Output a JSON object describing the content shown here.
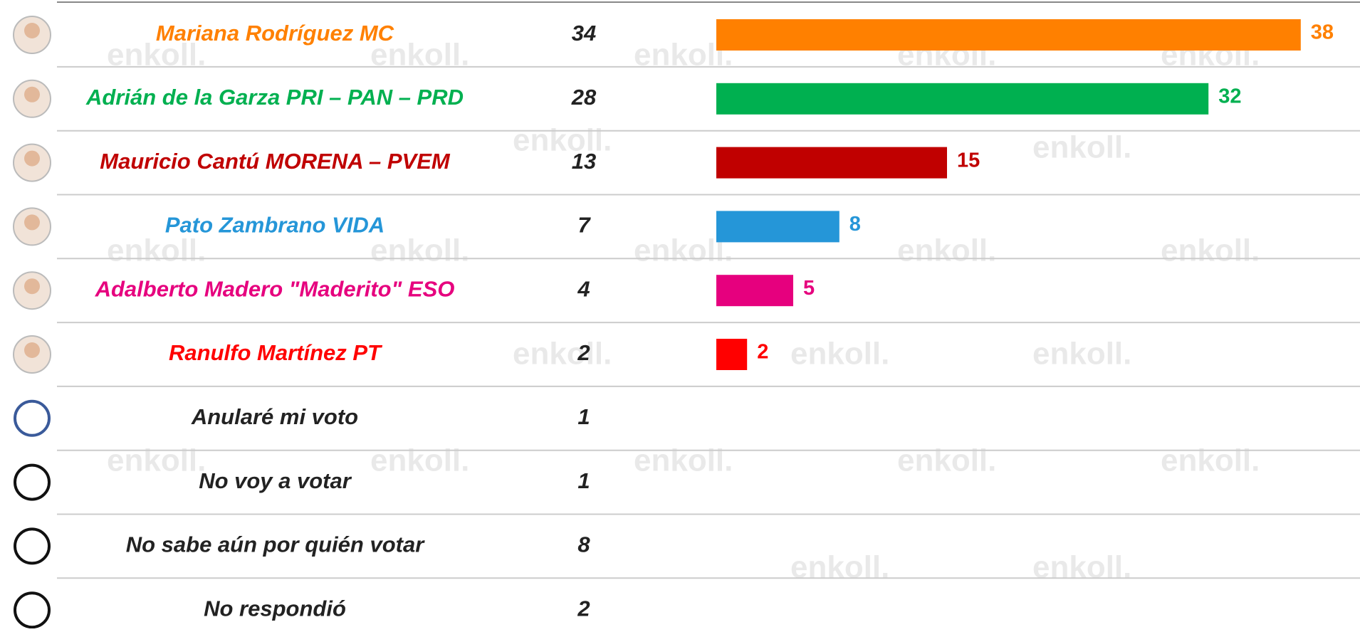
{
  "chart_data": {
    "type": "bar",
    "watermark": "enkoll.",
    "categories": [
      "Mariana Rodríguez MC",
      "Adrián de la Garza PRI – PAN – PRD",
      "Mauricio Cantú MORENA – PVEM",
      "Pato Zambrano VIDA",
      "Adalberto Madero \"Maderito\" ESO",
      "Ranulfo Martínez PT",
      "Anularé mi voto",
      "No voy a votar",
      "No sabe aún por quién votar",
      "No respondió"
    ],
    "colors": [
      "#ff8000",
      "#00b050",
      "#c00000",
      "#2596d8",
      "#e6007e",
      "#ff0000",
      "#222222",
      "#222222",
      "#222222",
      "#222222"
    ],
    "column_values": [
      34,
      28,
      13,
      7,
      4,
      2,
      1,
      1,
      8,
      2
    ],
    "values": [
      38,
      32,
      15,
      8,
      5,
      2,
      null,
      null,
      null,
      null
    ],
    "xlim": [
      0,
      40
    ]
  }
}
